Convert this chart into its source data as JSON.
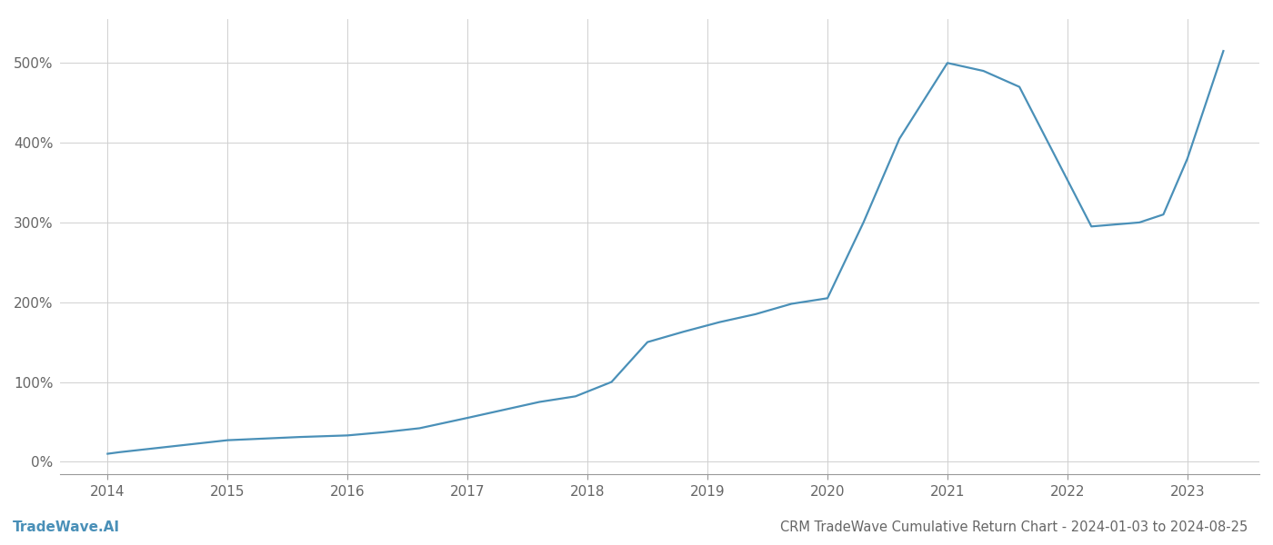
{
  "title": "CRM TradeWave Cumulative Return Chart - 2024-01-03 to 2024-08-25",
  "watermark": "TradeWave.AI",
  "line_color": "#4a90b8",
  "background_color": "#ffffff",
  "grid_color": "#d0d0d0",
  "x_values": [
    2014.0,
    2014.1,
    2014.4,
    2014.7,
    2015.0,
    2015.3,
    2015.6,
    2016.0,
    2016.3,
    2016.6,
    2017.0,
    2017.3,
    2017.6,
    2017.9,
    2018.2,
    2018.5,
    2018.8,
    2019.1,
    2019.4,
    2019.7,
    2020.0,
    2020.3,
    2020.6,
    2021.0,
    2021.3,
    2021.6,
    2022.2,
    2022.6,
    2022.8,
    2023.0,
    2023.3
  ],
  "y_values": [
    10,
    12,
    17,
    22,
    27,
    29,
    31,
    33,
    37,
    42,
    55,
    65,
    75,
    82,
    100,
    150,
    163,
    175,
    185,
    198,
    205,
    300,
    405,
    500,
    490,
    470,
    295,
    300,
    310,
    380,
    515
  ],
  "xlim": [
    2013.6,
    2023.6
  ],
  "ylim": [
    -15,
    555
  ],
  "yticks": [
    0,
    100,
    200,
    300,
    400,
    500
  ],
  "xticks": [
    2014,
    2015,
    2016,
    2017,
    2018,
    2019,
    2020,
    2021,
    2022,
    2023
  ],
  "tick_fontsize": 11,
  "title_fontsize": 10.5,
  "watermark_fontsize": 11,
  "line_width": 1.6
}
